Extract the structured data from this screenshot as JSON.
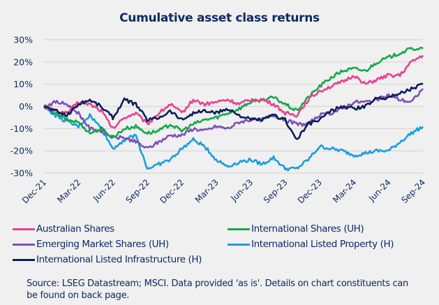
{
  "chart_data": {
    "type": "line",
    "title": "Cumulative asset class returns",
    "xlabel": "",
    "ylabel": "",
    "ylim": [
      -30,
      30
    ],
    "yticks": [
      "30%",
      "20%",
      "10%",
      "0%",
      "-10%",
      "-20%",
      "-30%"
    ],
    "ytick_values": [
      30,
      20,
      10,
      0,
      -10,
      -20,
      -30
    ],
    "xticks": [
      "Dec-21",
      "Mar-22",
      "Jun-22",
      "Sep-22",
      "Dec-22",
      "Mar-23",
      "Jun-23",
      "Sep-23",
      "Dec-23",
      "Mar-24",
      "Jun-24",
      "Sep-24"
    ],
    "x": [
      "Dec-21",
      "Jan-22",
      "Feb-22",
      "Mar-22",
      "Apr-22",
      "May-22",
      "Jun-22",
      "Jul-22",
      "Aug-22",
      "Sep-22",
      "Oct-22",
      "Nov-22",
      "Dec-22",
      "Jan-23",
      "Feb-23",
      "Mar-23",
      "Apr-23",
      "May-23",
      "Jun-23",
      "Jul-23",
      "Aug-23",
      "Sep-23",
      "Oct-23",
      "Nov-23",
      "Dec-23",
      "Jan-24",
      "Feb-24",
      "Mar-24",
      "Apr-24",
      "May-24",
      "Jun-24",
      "Jul-24",
      "Aug-24",
      "Sep-24"
    ],
    "grid": true,
    "legend_position": "bottom",
    "series": [
      {
        "name": "Australian Shares",
        "color": "#e8428c",
        "values": [
          0,
          -2,
          -3,
          2,
          1,
          -2,
          -10,
          -5,
          -3,
          -8,
          -3,
          1,
          -3,
          3,
          1,
          2,
          3,
          1,
          3,
          3,
          1,
          -3,
          -4,
          3,
          7,
          9,
          11,
          14,
          10,
          12,
          14,
          14,
          20,
          23
        ]
      },
      {
        "name": "International Shares (UH)",
        "color": "#13a84a",
        "values": [
          0,
          -3,
          -6,
          -7,
          -12,
          -10,
          -14,
          -10,
          -9,
          -12,
          -11,
          -8,
          -11,
          -8,
          -6,
          -5,
          -3,
          -1,
          2,
          3,
          4,
          1,
          -2,
          4,
          9,
          13,
          16,
          17,
          16,
          20,
          22,
          24,
          26,
          26
        ]
      },
      {
        "name": "Emerging Market Shares (UH)",
        "color": "#7f4fb8",
        "values": [
          0,
          2,
          1,
          -3,
          -10,
          -11,
          -14,
          -14,
          -16,
          -19,
          -16,
          -13,
          -13,
          -10,
          -11,
          -9,
          -10,
          -7,
          -6,
          -6,
          -4,
          -6,
          -8,
          -8,
          -4,
          -3,
          -1,
          2,
          2,
          3,
          5,
          3,
          2,
          8
        ]
      },
      {
        "name": "International Listed Property (H)",
        "color": "#1a9de0",
        "values": [
          0,
          -4,
          -7,
          -9,
          -4,
          -10,
          -19,
          -15,
          -13,
          -28,
          -26,
          -24,
          -19,
          -15,
          -18,
          -24,
          -27,
          -25,
          -24,
          -26,
          -23,
          -28,
          -28,
          -24,
          -18,
          -19,
          -20,
          -22,
          -21,
          -20,
          -20,
          -16,
          -12,
          -9
        ]
      },
      {
        "name": "International Listed Infrastructure (H)",
        "color": "#0b1f5a",
        "values": [
          0,
          -2,
          -4,
          1,
          3,
          0,
          -5,
          3,
          1,
          -6,
          -5,
          -2,
          -6,
          -3,
          -2,
          -3,
          -1,
          -4,
          -6,
          -6,
          -4,
          -6,
          -15,
          -8,
          -6,
          -2,
          0,
          -1,
          0,
          4,
          4,
          6,
          8,
          10
        ]
      }
    ]
  },
  "legend": {
    "items": [
      {
        "label": "Australian Shares",
        "color": "#e8428c"
      },
      {
        "label": "International Shares (UH)",
        "color": "#13a84a"
      },
      {
        "label": "Emerging Market Shares (UH)",
        "color": "#7f4fb8"
      },
      {
        "label": "International Listed Property (H)",
        "color": "#1a9de0"
      },
      {
        "label": "International Listed Infrastructure (H)",
        "color": "#0b1f5a"
      }
    ]
  },
  "source": {
    "text": "Source: LSEG Datastream; MSCI. Data provided 'as is'. Details on chart constituents can be found on back page."
  }
}
